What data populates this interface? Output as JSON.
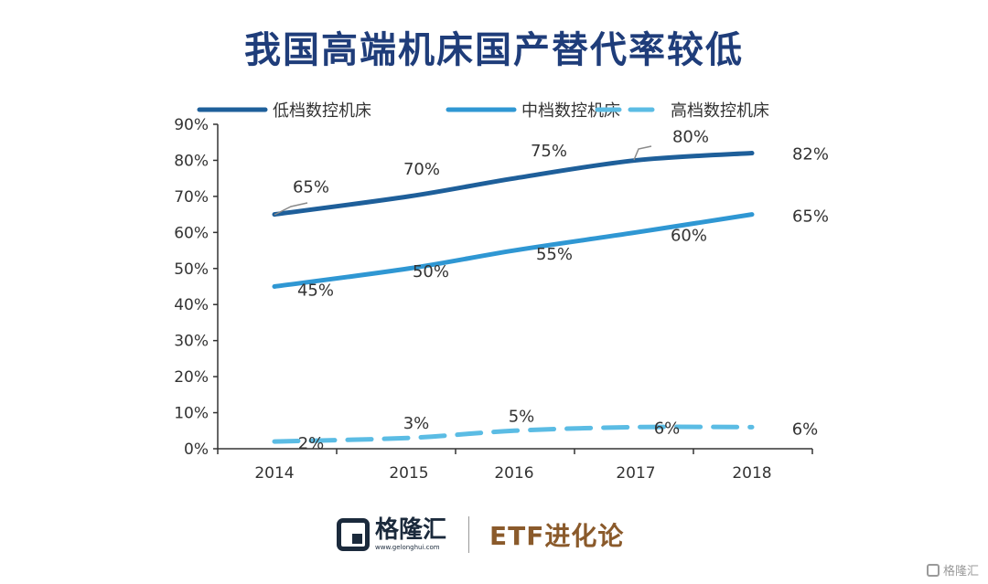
{
  "chart_data": {
    "type": "line",
    "title": "我国高端机床国产替代率较低",
    "categories": [
      "2014",
      "2015",
      "2016",
      "2017",
      "2018"
    ],
    "series": [
      {
        "name": "低档数控机床",
        "values": [
          65,
          70,
          75,
          80,
          82
        ],
        "labels": [
          "65%",
          "70%",
          "75%",
          "80%",
          "82%"
        ],
        "color": "#1e5f9a",
        "dashed": false
      },
      {
        "name": "中档数控机床",
        "values": [
          45,
          50,
          55,
          60,
          65
        ],
        "labels": [
          "45%",
          "50%",
          "55%",
          "60%",
          "65%"
        ],
        "color": "#2f97d3",
        "dashed": false
      },
      {
        "name": "高档数控机床",
        "values": [
          2,
          3,
          5,
          6,
          6
        ],
        "labels": [
          "2%",
          "3%",
          "5%",
          "6%",
          "6%"
        ],
        "color": "#5bbce4",
        "dashed": true
      }
    ],
    "yticks": [
      "0%",
      "10%",
      "20%",
      "30%",
      "40%",
      "50%",
      "60%",
      "70%",
      "80%",
      "90%"
    ],
    "ylim": [
      0,
      90
    ],
    "grid": false,
    "legend": "top"
  },
  "brand": {
    "name": "格隆汇",
    "url": "www.gelonghui.com",
    "partner": "ETF进化论"
  },
  "watermark": "格隆汇"
}
